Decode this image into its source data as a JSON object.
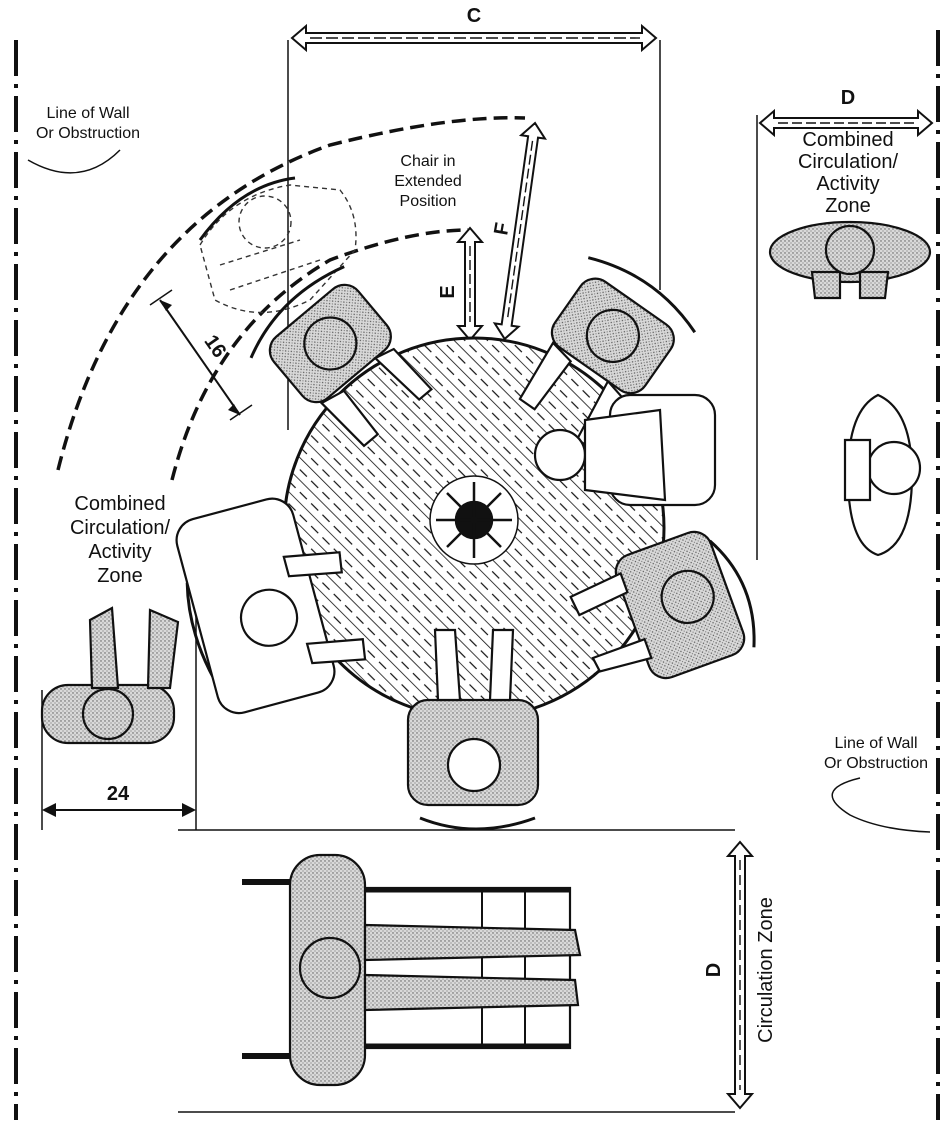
{
  "diagram": {
    "labels": {
      "wall_top_left_line1": "Line of Wall",
      "wall_top_left_line2": "Or Obstruction",
      "wall_right_line1": "Line of Wall",
      "wall_right_line2": "Or Obstruction",
      "chair_extended_line1": "Chair in",
      "chair_extended_line2": "Extended",
      "chair_extended_line3": "Position",
      "zone_left_line1": "Combined",
      "zone_left_line2": "Circulation/",
      "zone_left_line3": "Activity",
      "zone_left_line4": "Zone",
      "zone_right_line1": "Combined",
      "zone_right_line2": "Circulation/",
      "zone_right_line3": "Activity",
      "zone_right_line4": "Zone",
      "circulation_zone": "Circulation Zone"
    },
    "dimensions": {
      "c": "C",
      "d_top": "D",
      "d_bottom": "D",
      "e": "E",
      "f": "F",
      "sixteen": "16",
      "twentyfour": "24"
    },
    "colors": {
      "ink": "#111111",
      "fill": "#ffffff",
      "stipple": "#9a9a9a"
    },
    "icons": {
      "seated_figure": "seated-person-icon",
      "wheelchair": "wheelchair-user-icon",
      "table": "round-table-icon"
    }
  }
}
